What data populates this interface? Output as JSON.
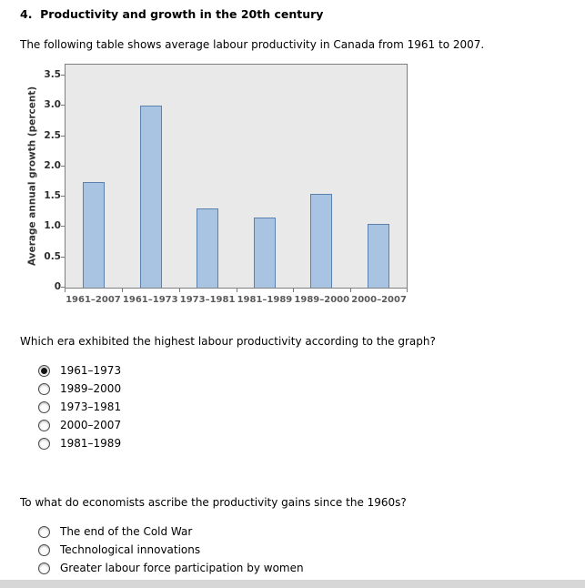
{
  "page": {
    "title": "4.  Productivity and growth in the 20th century",
    "intro": "The following table shows average labour productivity in Canada from 1961 to 2007."
  },
  "chart_data": {
    "type": "bar",
    "categories": [
      "1961–2007",
      "1961–1973",
      "1973–1981",
      "1981–1989",
      "1989–2000",
      "2000–2007"
    ],
    "values": [
      1.75,
      3.0,
      1.3,
      1.15,
      1.55,
      1.05
    ],
    "title": "",
    "xlabel": "",
    "ylabel": "Average annual growth (percent)",
    "ylim": [
      0,
      3.5
    ],
    "ytick_labels": [
      "0",
      "0.5",
      "1.0",
      "1.5",
      "2.0",
      "2.5",
      "3.0",
      "3.5"
    ],
    "grid": false,
    "legend": false,
    "bar_fill": "#a9c4e2",
    "bar_border": "#5d81ad",
    "plot_bg": "#e9e9e9"
  },
  "question1": {
    "text": "Which era exhibited the highest labour productivity according to the graph?",
    "options": [
      {
        "label": "1961–1973",
        "selected": true
      },
      {
        "label": "1989–2000",
        "selected": false
      },
      {
        "label": "1973–1981",
        "selected": false
      },
      {
        "label": "2000–2007",
        "selected": false
      },
      {
        "label": "1981–1989",
        "selected": false
      }
    ]
  },
  "question2": {
    "text": "To what do economists ascribe the productivity gains since the 1960s?",
    "options": [
      {
        "label": "The end of the Cold War",
        "selected": false
      },
      {
        "label": "Technological innovations",
        "selected": false
      },
      {
        "label": "Greater labour force participation by women",
        "selected": false
      }
    ]
  }
}
